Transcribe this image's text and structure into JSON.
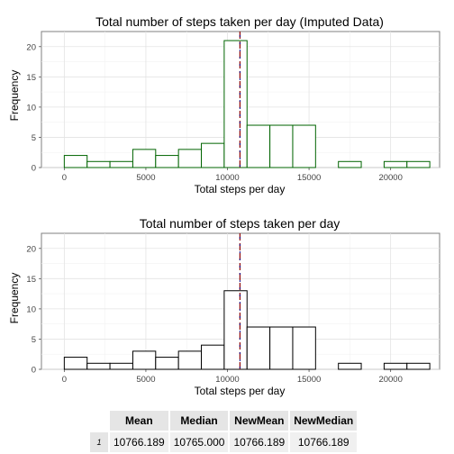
{
  "chart_data": [
    {
      "type": "bar",
      "title": "Total number of steps taken per day (Imputed Data)",
      "xlabel": "Total steps per day",
      "ylabel": "Frequency",
      "xlim": [
        -1400,
        23000
      ],
      "ylim": [
        0,
        22.5
      ],
      "xticks": [
        0,
        5000,
        10000,
        15000,
        20000
      ],
      "yticks": [
        0,
        5,
        10,
        15,
        20
      ],
      "bin_width": 1400,
      "bins": [
        {
          "start": -1400,
          "count": 0
        },
        {
          "start": 0,
          "count": 2
        },
        {
          "start": 1400,
          "count": 1
        },
        {
          "start": 2800,
          "count": 1
        },
        {
          "start": 4200,
          "count": 3
        },
        {
          "start": 5600,
          "count": 2
        },
        {
          "start": 7000,
          "count": 3
        },
        {
          "start": 8400,
          "count": 4
        },
        {
          "start": 9800,
          "count": 21
        },
        {
          "start": 11200,
          "count": 7
        },
        {
          "start": 12600,
          "count": 7
        },
        {
          "start": 14000,
          "count": 7
        },
        {
          "start": 15400,
          "count": 0
        },
        {
          "start": 16800,
          "count": 1
        },
        {
          "start": 18200,
          "count": 0
        },
        {
          "start": 19600,
          "count": 1
        },
        {
          "start": 21000,
          "count": 1
        }
      ],
      "bar_outline": "#006400",
      "mean_line": {
        "value": 10766.189,
        "color": "#8b0000"
      },
      "median_line": {
        "value": 10766.189,
        "color": "#00008b"
      },
      "grid": true
    },
    {
      "type": "bar",
      "title": "Total number of steps taken per day",
      "xlabel": "Total steps per day",
      "ylabel": "Frequency",
      "xlim": [
        -1400,
        23000
      ],
      "ylim": [
        0,
        22.5
      ],
      "xticks": [
        0,
        5000,
        10000,
        15000,
        20000
      ],
      "yticks": [
        0,
        5,
        10,
        15,
        20
      ],
      "bin_width": 1400,
      "bins": [
        {
          "start": -1400,
          "count": 0
        },
        {
          "start": 0,
          "count": 2
        },
        {
          "start": 1400,
          "count": 1
        },
        {
          "start": 2800,
          "count": 1
        },
        {
          "start": 4200,
          "count": 3
        },
        {
          "start": 5600,
          "count": 2
        },
        {
          "start": 7000,
          "count": 3
        },
        {
          "start": 8400,
          "count": 4
        },
        {
          "start": 9800,
          "count": 13
        },
        {
          "start": 11200,
          "count": 7
        },
        {
          "start": 12600,
          "count": 7
        },
        {
          "start": 14000,
          "count": 7
        },
        {
          "start": 15400,
          "count": 0
        },
        {
          "start": 16800,
          "count": 1
        },
        {
          "start": 18200,
          "count": 0
        },
        {
          "start": 19600,
          "count": 1
        },
        {
          "start": 21000,
          "count": 1
        }
      ],
      "bar_outline": "#000000",
      "mean_line": {
        "value": 10766.189,
        "color": "#8b0000"
      },
      "median_line": {
        "value": 10765,
        "color": "#00008b"
      },
      "grid": true
    }
  ],
  "stats_table": {
    "headers": [
      "Mean",
      "Median",
      "NewMean",
      "NewMedian"
    ],
    "row_label": "1",
    "values": [
      "10766.189",
      "10765.000",
      "10766.189",
      "10766.189"
    ]
  }
}
